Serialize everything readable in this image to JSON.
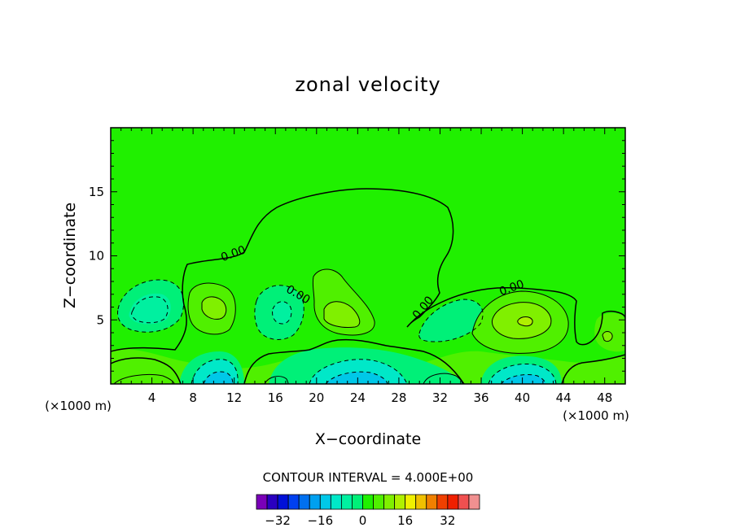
{
  "chart_data": {
    "type": "contour",
    "title": "zonal velocity",
    "xlabel": "X−coordinate",
    "ylabel": "Z−coordinate",
    "x_unit": "(×1000 m)",
    "y_unit": "",
    "x_ticks": [
      "4",
      "8",
      "12",
      "16",
      "20",
      "24",
      "28",
      "32",
      "36",
      "40",
      "44",
      "48"
    ],
    "y_ticks": [
      "5",
      "10",
      "15"
    ],
    "xlim": [
      0,
      50
    ],
    "ylim": [
      0,
      20
    ],
    "contour_interval_text": "CONTOUR INTERVAL = 4.000E+00",
    "contour_label": "0.00",
    "colorbar": {
      "levels": [
        -36,
        -32,
        -28,
        -24,
        -20,
        -16,
        -12,
        -8,
        -4,
        0,
        4,
        8,
        12,
        16,
        20,
        24,
        28,
        32,
        36
      ],
      "tick_labels": [
        "−32",
        "−16",
        "0",
        "16",
        "32"
      ],
      "tick_values": [
        -32,
        -16,
        0,
        16,
        32
      ],
      "colors": [
        "#7a00b8",
        "#2a00c0",
        "#0010d8",
        "#0040f0",
        "#0070f0",
        "#00a0f0",
        "#00c8e8",
        "#00e8c8",
        "#00f0a0",
        "#00f078",
        "#20f000",
        "#50f000",
        "#80f000",
        "#b0f000",
        "#f0f000",
        "#f0c000",
        "#f08000",
        "#f04000",
        "#f02000",
        "#f05050",
        "#f09090"
      ]
    },
    "features": [
      {
        "kind": "min",
        "x": 4,
        "z": 6.0,
        "value": -12
      },
      {
        "kind": "max",
        "x": 10,
        "z": 6.3,
        "value": 12
      },
      {
        "kind": "min",
        "x": 17,
        "z": 5.5,
        "value": -8
      },
      {
        "kind": "max",
        "x": 22,
        "z": 5.5,
        "value": 12
      },
      {
        "kind": "min",
        "x": 33,
        "z": 5.0,
        "value": -8
      },
      {
        "kind": "max",
        "x": 40,
        "z": 5.0,
        "value": 16
      },
      {
        "kind": "min",
        "x": 10,
        "z": 1.5,
        "value": -16
      },
      {
        "kind": "min",
        "x": 24,
        "z": 1.0,
        "value": -16
      },
      {
        "kind": "min",
        "x": 40,
        "z": 0.5,
        "value": -20
      },
      {
        "kind": "max",
        "x": 2,
        "z": 0.3,
        "value": 12
      },
      {
        "kind": "max",
        "x": 16,
        "z": 0.5,
        "value": 12
      },
      {
        "kind": "max",
        "x": 32,
        "z": 0.5,
        "value": 12
      }
    ]
  }
}
